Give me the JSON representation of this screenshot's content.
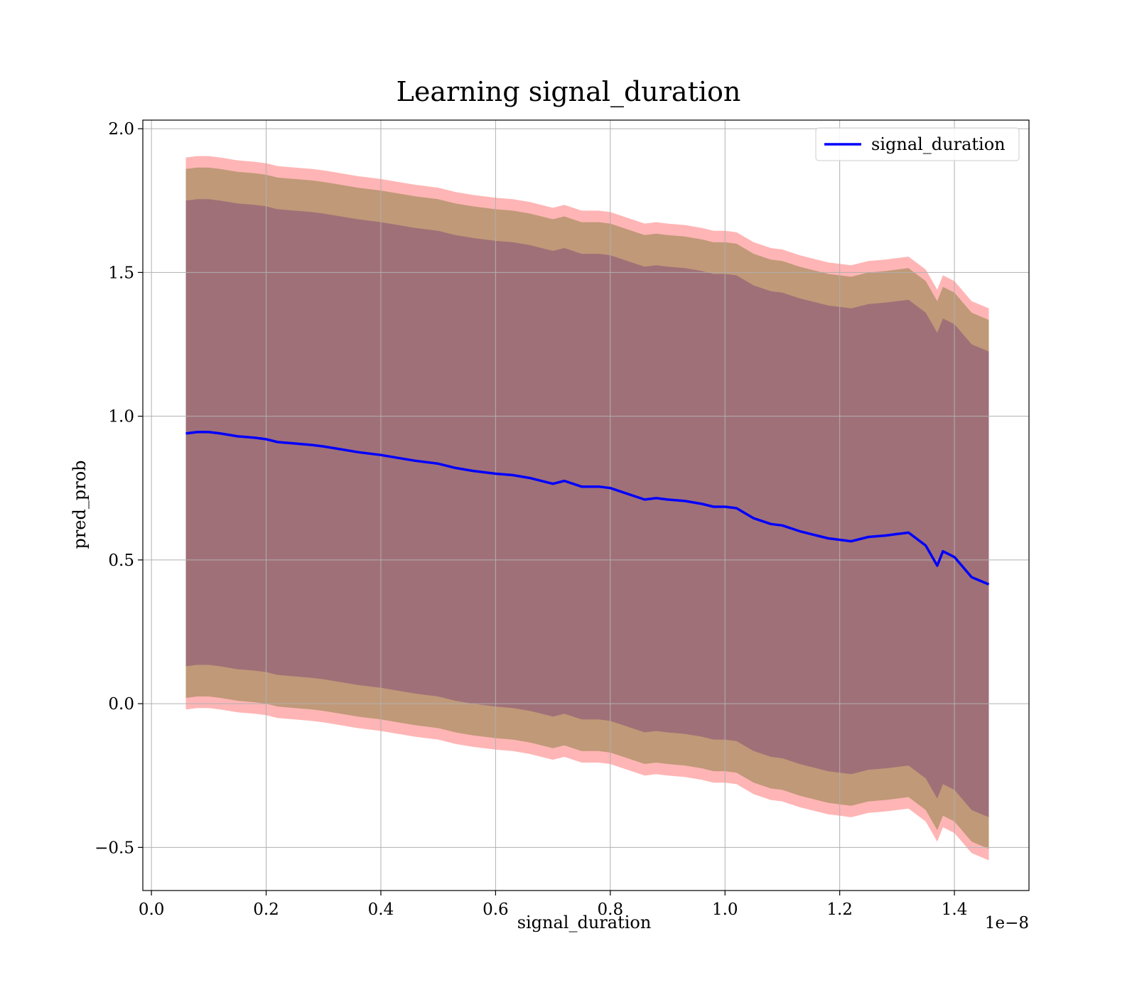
{
  "chart_data": {
    "type": "line",
    "title": "Learning signal_duration",
    "xlabel": "signal_duration",
    "ylabel": "pred_prob",
    "x_offset_text": "1e−8",
    "xlim": [
      -0.015,
      1.53
    ],
    "ylim": [
      -0.65,
      2.03
    ],
    "x_ticks": [
      {
        "value": 0.0,
        "label": "0.0"
      },
      {
        "value": 0.2,
        "label": "0.2"
      },
      {
        "value": 0.4,
        "label": "0.4"
      },
      {
        "value": 0.6,
        "label": "0.6"
      },
      {
        "value": 0.8,
        "label": "0.8"
      },
      {
        "value": 1.0,
        "label": "1.0"
      },
      {
        "value": 1.2,
        "label": "1.2"
      },
      {
        "value": 1.4,
        "label": "1.4"
      }
    ],
    "y_ticks": [
      {
        "value": -0.5,
        "label": "−0.5"
      },
      {
        "value": 0.0,
        "label": "0.0"
      },
      {
        "value": 0.5,
        "label": "0.5"
      },
      {
        "value": 1.0,
        "label": "1.0"
      },
      {
        "value": 1.5,
        "label": "1.5"
      },
      {
        "value": 2.0,
        "label": "2.0"
      }
    ],
    "grid": true,
    "legend_position": "top-right",
    "series": [
      {
        "name": "signal_duration",
        "color": "#0000ff",
        "x": [
          0.06,
          0.08,
          0.1,
          0.12,
          0.15,
          0.18,
          0.2,
          0.22,
          0.25,
          0.28,
          0.3,
          0.33,
          0.36,
          0.4,
          0.43,
          0.46,
          0.5,
          0.53,
          0.56,
          0.6,
          0.63,
          0.66,
          0.7,
          0.72,
          0.75,
          0.78,
          0.8,
          0.83,
          0.86,
          0.88,
          0.9,
          0.93,
          0.96,
          0.98,
          1.0,
          1.02,
          1.05,
          1.08,
          1.1,
          1.13,
          1.16,
          1.18,
          1.2,
          1.22,
          1.25,
          1.28,
          1.3,
          1.32,
          1.35,
          1.37,
          1.38,
          1.4,
          1.43,
          1.46
        ],
        "y": [
          0.94,
          0.945,
          0.945,
          0.94,
          0.93,
          0.925,
          0.92,
          0.91,
          0.905,
          0.9,
          0.895,
          0.885,
          0.875,
          0.865,
          0.855,
          0.845,
          0.835,
          0.82,
          0.81,
          0.8,
          0.795,
          0.785,
          0.765,
          0.775,
          0.755,
          0.755,
          0.75,
          0.73,
          0.71,
          0.715,
          0.71,
          0.705,
          0.695,
          0.685,
          0.685,
          0.68,
          0.645,
          0.625,
          0.62,
          0.6,
          0.585,
          0.575,
          0.57,
          0.565,
          0.58,
          0.585,
          0.59,
          0.595,
          0.55,
          0.48,
          0.53,
          0.51,
          0.44,
          0.415
        ]
      }
    ],
    "bands": [
      {
        "name": "outer",
        "color": "#ff6b6b",
        "opacity": 0.5,
        "upper_offset": 0.96,
        "lower_offset": 0.96
      },
      {
        "name": "middle",
        "color": "#b5946d",
        "opacity": 0.85,
        "upper_offset": 0.92,
        "lower_offset": 0.92
      },
      {
        "name": "inner",
        "color": "#a07078",
        "opacity": 1.0,
        "upper_offset": 0.81,
        "lower_offset": 0.81
      }
    ]
  }
}
